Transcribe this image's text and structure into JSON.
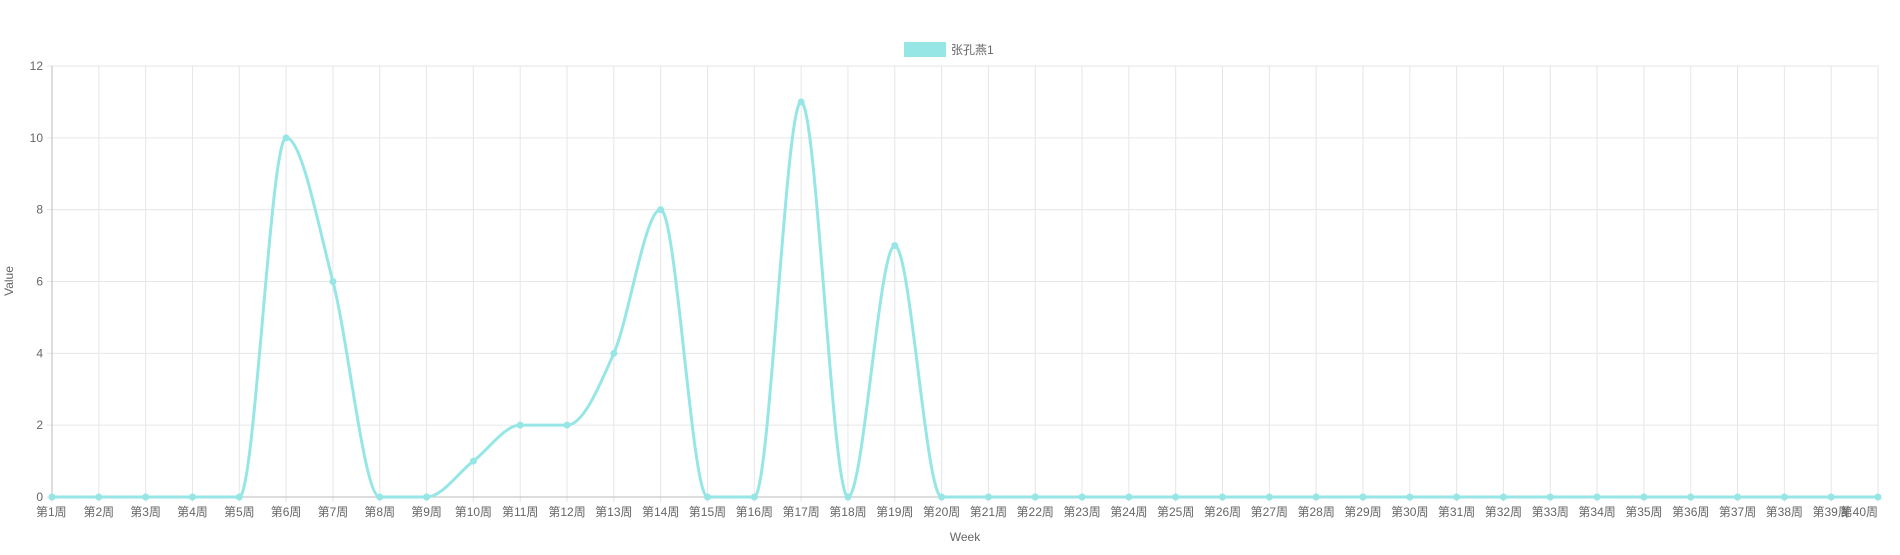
{
  "chart_data": {
    "type": "line",
    "xlabel": "Week",
    "ylabel": "Value",
    "ylim": [
      0,
      12
    ],
    "y_ticks": [
      0,
      2,
      4,
      6,
      8,
      10,
      12
    ],
    "grid": true,
    "legend_position": "top",
    "categories": [
      "第1周",
      "第2周",
      "第3周",
      "第4周",
      "第5周",
      "第6周",
      "第7周",
      "第8周",
      "第9周",
      "第10周",
      "第11周",
      "第12周",
      "第13周",
      "第14周",
      "第15周",
      "第16周",
      "第17周",
      "第18周",
      "第19周",
      "第20周",
      "第21周",
      "第22周",
      "第23周",
      "第24周",
      "第25周",
      "第26周",
      "第27周",
      "第28周",
      "第29周",
      "第30周",
      "第31周",
      "第32周",
      "第33周",
      "第34周",
      "第35周",
      "第36周",
      "第37周",
      "第38周",
      "第39周",
      "第40周"
    ],
    "series": [
      {
        "name": "张孔燕1",
        "color": "#97e6e6",
        "values": [
          0,
          0,
          0,
          0,
          0,
          10,
          6,
          0,
          0,
          1,
          2,
          2,
          4,
          8,
          0,
          0,
          11,
          0,
          7,
          0,
          0,
          0,
          0,
          0,
          0,
          0,
          0,
          0,
          0,
          0,
          0,
          0,
          0,
          0,
          0,
          0,
          0,
          0,
          0,
          0
        ]
      }
    ]
  },
  "colors": {
    "grid": "#e6e6e6",
    "axis": "#bbbbbb",
    "text": "#666666"
  }
}
